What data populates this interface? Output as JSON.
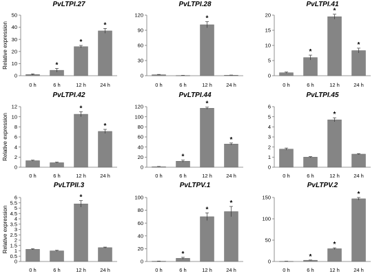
{
  "chart_data": [
    {
      "type": "bar",
      "title": "PvLTPI.27",
      "ylabel": "Relative expression",
      "categories": [
        "0 h",
        "6 h",
        "12 h",
        "24 h"
      ],
      "values": [
        1,
        4.5,
        24,
        37
      ],
      "errors": [
        0.5,
        1.5,
        1,
        2
      ],
      "significant": [
        false,
        true,
        true,
        true
      ],
      "ylim": [
        0,
        50
      ],
      "yticks": [
        0,
        10,
        20,
        30,
        40,
        50
      ]
    },
    {
      "type": "bar",
      "title": "PvLTPI.28",
      "ylabel": "",
      "categories": [
        "0 h",
        "6 h",
        "12 h",
        "24 h"
      ],
      "values": [
        2,
        0.5,
        101,
        1
      ],
      "errors": [
        0.5,
        0.2,
        6,
        0.3
      ],
      "significant": [
        false,
        false,
        true,
        false
      ],
      "ylim": [
        0,
        120
      ],
      "yticks": [
        0,
        30,
        60,
        90,
        120
      ]
    },
    {
      "type": "bar",
      "title": "PvLTPI.41",
      "ylabel": "",
      "categories": [
        "0 h",
        "6 h",
        "12 h",
        "24 h"
      ],
      "values": [
        1,
        6,
        19.5,
        8.3
      ],
      "errors": [
        0.2,
        0.8,
        0.8,
        0.8
      ],
      "significant": [
        false,
        true,
        true,
        true
      ],
      "ylim": [
        0,
        20
      ],
      "yticks": [
        0,
        5,
        10,
        15,
        20
      ]
    },
    {
      "type": "bar",
      "title": "PvLTPI.42",
      "ylabel": "Relative expression",
      "categories": [
        "0 h",
        "6 h",
        "12 h",
        "24 h"
      ],
      "values": [
        1.3,
        0.9,
        10.5,
        7.1
      ],
      "errors": [
        0.1,
        0.1,
        0.5,
        0.4
      ],
      "significant": [
        false,
        false,
        true,
        true
      ],
      "ylim": [
        0,
        12
      ],
      "yticks": [
        0,
        2,
        4,
        6,
        8,
        10,
        12
      ]
    },
    {
      "type": "bar",
      "title": "PvLTPI.44",
      "ylabel": "",
      "categories": [
        "0 h",
        "6 h",
        "12 h",
        "24 h"
      ],
      "values": [
        1,
        12,
        117,
        46
      ],
      "errors": [
        0.5,
        2,
        2,
        2
      ],
      "significant": [
        false,
        true,
        true,
        true
      ],
      "ylim": [
        0,
        120
      ],
      "yticks": [
        0,
        20,
        40,
        60,
        80,
        100,
        120
      ]
    },
    {
      "type": "bar",
      "title": "PvLTPI.45",
      "ylabel": "",
      "categories": [
        "0 h",
        "6 h",
        "12 h",
        "24 h"
      ],
      "values": [
        1.8,
        1,
        4.7,
        1.3
      ],
      "errors": [
        0.1,
        0.05,
        0.2,
        0.05
      ],
      "significant": [
        false,
        false,
        true,
        false
      ],
      "ylim": [
        0,
        6
      ],
      "yticks": [
        0,
        1,
        2,
        3,
        4,
        5,
        6
      ]
    },
    {
      "type": "bar",
      "title": "PvLTPII.3",
      "ylabel": "Relative expression",
      "categories": [
        "0 h",
        "6 h",
        "12 h",
        "24 h"
      ],
      "values": [
        1.15,
        1,
        5.4,
        1.3
      ],
      "errors": [
        0.05,
        0.05,
        0.3,
        0.05
      ],
      "significant": [
        false,
        false,
        true,
        false
      ],
      "ylim": [
        0,
        6
      ],
      "yticks": [
        0,
        0.5,
        1,
        1.5,
        2,
        2.5,
        3,
        3.5,
        4,
        4.5,
        5,
        5.5,
        6
      ],
      "yticklabels": [
        "0",
        "0.5",
        "1",
        "1.5",
        "2",
        "2.5",
        "3",
        "3.5",
        "4",
        "4.5",
        "5",
        "5.5",
        "6"
      ]
    },
    {
      "type": "bar",
      "title": "PvLTPV.1",
      "ylabel": "",
      "categories": [
        "0 h",
        "6 h",
        "12 h",
        "24 h"
      ],
      "values": [
        0.5,
        5,
        70,
        78
      ],
      "errors": [
        0.2,
        1.5,
        6,
        8
      ],
      "significant": [
        false,
        true,
        true,
        true
      ],
      "ylim": [
        0,
        100
      ],
      "yticks": [
        0,
        20,
        40,
        60,
        80,
        100
      ]
    },
    {
      "type": "bar",
      "title": "PvLTPV.2",
      "ylabel": "",
      "categories": [
        "0 h",
        "6 h",
        "12 h",
        "24 h"
      ],
      "values": [
        0.5,
        3,
        30,
        147
      ],
      "errors": [
        0.2,
        0.5,
        2,
        3
      ],
      "significant": [
        false,
        true,
        true,
        true
      ],
      "ylim": [
        0,
        150
      ],
      "yticks": [
        0,
        50,
        100,
        150
      ]
    }
  ],
  "significance_mark": "*",
  "colors": {
    "bar": "#858585",
    "bar_edge": "#5e5e5e",
    "axis": "#777777",
    "text": "#000000"
  }
}
